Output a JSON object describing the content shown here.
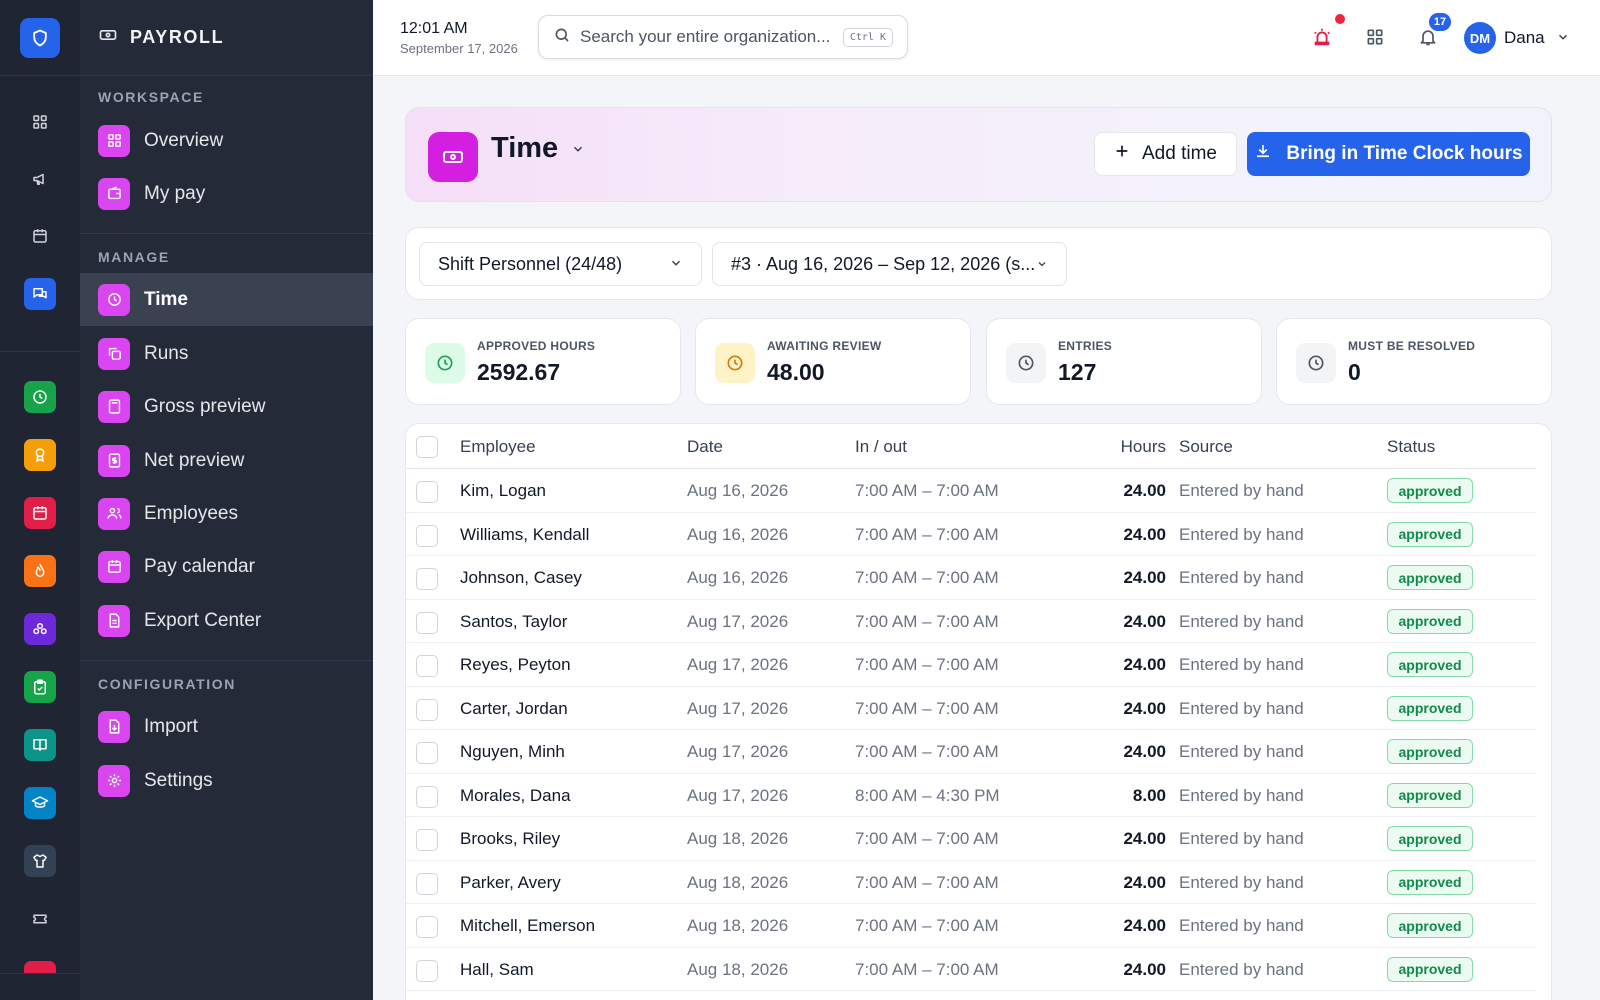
{
  "colors": {
    "rail_bg": "#1f2533",
    "sidebar_bg": "#242a38",
    "accent_blue": "#2563eb",
    "payroll_magenta": "#d946ef",
    "approved_green": "#0f8a4a"
  },
  "rail": {
    "logo_icon": "shield-icon",
    "items": [
      {
        "icon": "grid-icon"
      },
      {
        "icon": "megaphone-icon"
      },
      {
        "icon": "calendar-icon"
      },
      {
        "icon": "chat-icon",
        "color": "#2563eb"
      },
      {
        "icon": "clock-icon",
        "color": "#16a34a"
      },
      {
        "icon": "award-icon",
        "color": "#f59e0b"
      },
      {
        "icon": "calendar-red-icon",
        "color": "#e11d48"
      },
      {
        "icon": "flame-icon",
        "color": "#f97316"
      },
      {
        "icon": "people-icon",
        "color": "#6d28d9"
      },
      {
        "icon": "clipboard-icon",
        "color": "#16a34a"
      },
      {
        "icon": "book-icon",
        "color": "#0d9488"
      },
      {
        "icon": "graduation-icon",
        "color": "#0284c7"
      },
      {
        "icon": "shirt-icon",
        "color": "#334155"
      },
      {
        "icon": "ticket-icon"
      }
    ]
  },
  "sidebar": {
    "title": "PAYROLL",
    "sections": [
      {
        "label": "WORKSPACE",
        "items": [
          {
            "label": "Overview",
            "icon": "grid-icon"
          },
          {
            "label": "My pay",
            "icon": "wallet-icon"
          }
        ]
      },
      {
        "label": "MANAGE",
        "items": [
          {
            "label": "Time",
            "icon": "clock-icon",
            "active": true
          },
          {
            "label": "Runs",
            "icon": "copy-icon"
          },
          {
            "label": "Gross preview",
            "icon": "calculator-icon"
          },
          {
            "label": "Net preview",
            "icon": "receipt-icon"
          },
          {
            "label": "Employees",
            "icon": "users-icon"
          },
          {
            "label": "Pay calendar",
            "icon": "calendar-icon"
          },
          {
            "label": "Export Center",
            "icon": "file-icon"
          }
        ]
      },
      {
        "label": "CONFIGURATION",
        "items": [
          {
            "label": "Import",
            "icon": "file-import-icon"
          },
          {
            "label": "Settings",
            "icon": "gear-icon"
          }
        ]
      }
    ]
  },
  "topbar": {
    "time": "12:01 AM",
    "date": "September 17, 2026",
    "search_placeholder": "Search your entire organization...",
    "search_shortcut": "Ctrl K",
    "notifications_count": "17",
    "user_initials": "DM",
    "user_name": "Dana"
  },
  "page": {
    "title": "Time",
    "add_time_label": "Add time",
    "import_clock_label": "Bring in Time Clock hours"
  },
  "filters": {
    "group": "Shift Personnel (24/48)",
    "period": "#3 · Aug 16, 2026 – Sep 12, 2026 (s..."
  },
  "stats": [
    {
      "label": "APPROVED HOURS",
      "value": "2592.67"
    },
    {
      "label": "AWAITING REVIEW",
      "value": "48.00"
    },
    {
      "label": "ENTRIES",
      "value": "127"
    },
    {
      "label": "MUST BE RESOLVED",
      "value": "0"
    }
  ],
  "table": {
    "columns": [
      "Employee",
      "Date",
      "In / out",
      "Hours",
      "Source",
      "Status"
    ],
    "rows": [
      {
        "employee": "Kim, Logan",
        "date": "Aug 16, 2026",
        "inout": "7:00 AM – 7:00 AM",
        "hours": "24.00",
        "source": "Entered by hand",
        "status": "approved"
      },
      {
        "employee": "Williams, Kendall",
        "date": "Aug 16, 2026",
        "inout": "7:00 AM – 7:00 AM",
        "hours": "24.00",
        "source": "Entered by hand",
        "status": "approved"
      },
      {
        "employee": "Johnson, Casey",
        "date": "Aug 16, 2026",
        "inout": "7:00 AM – 7:00 AM",
        "hours": "24.00",
        "source": "Entered by hand",
        "status": "approved"
      },
      {
        "employee": "Santos, Taylor",
        "date": "Aug 17, 2026",
        "inout": "7:00 AM – 7:00 AM",
        "hours": "24.00",
        "source": "Entered by hand",
        "status": "approved"
      },
      {
        "employee": "Reyes, Peyton",
        "date": "Aug 17, 2026",
        "inout": "7:00 AM – 7:00 AM",
        "hours": "24.00",
        "source": "Entered by hand",
        "status": "approved"
      },
      {
        "employee": "Carter, Jordan",
        "date": "Aug 17, 2026",
        "inout": "7:00 AM – 7:00 AM",
        "hours": "24.00",
        "source": "Entered by hand",
        "status": "approved"
      },
      {
        "employee": "Nguyen, Minh",
        "date": "Aug 17, 2026",
        "inout": "7:00 AM – 7:00 AM",
        "hours": "24.00",
        "source": "Entered by hand",
        "status": "approved"
      },
      {
        "employee": "Morales, Dana",
        "date": "Aug 17, 2026",
        "inout": "8:00 AM – 4:30 PM",
        "hours": "8.00",
        "source": "Entered by hand",
        "status": "approved"
      },
      {
        "employee": "Brooks, Riley",
        "date": "Aug 18, 2026",
        "inout": "7:00 AM – 7:00 AM",
        "hours": "24.00",
        "source": "Entered by hand",
        "status": "approved"
      },
      {
        "employee": "Parker, Avery",
        "date": "Aug 18, 2026",
        "inout": "7:00 AM – 7:00 AM",
        "hours": "24.00",
        "source": "Entered by hand",
        "status": "approved"
      },
      {
        "employee": "Mitchell, Emerson",
        "date": "Aug 18, 2026",
        "inout": "7:00 AM – 7:00 AM",
        "hours": "24.00",
        "source": "Entered by hand",
        "status": "approved"
      },
      {
        "employee": "Hall, Sam",
        "date": "Aug 18, 2026",
        "inout": "7:00 AM – 7:00 AM",
        "hours": "24.00",
        "source": "Entered by hand",
        "status": "approved"
      }
    ]
  }
}
